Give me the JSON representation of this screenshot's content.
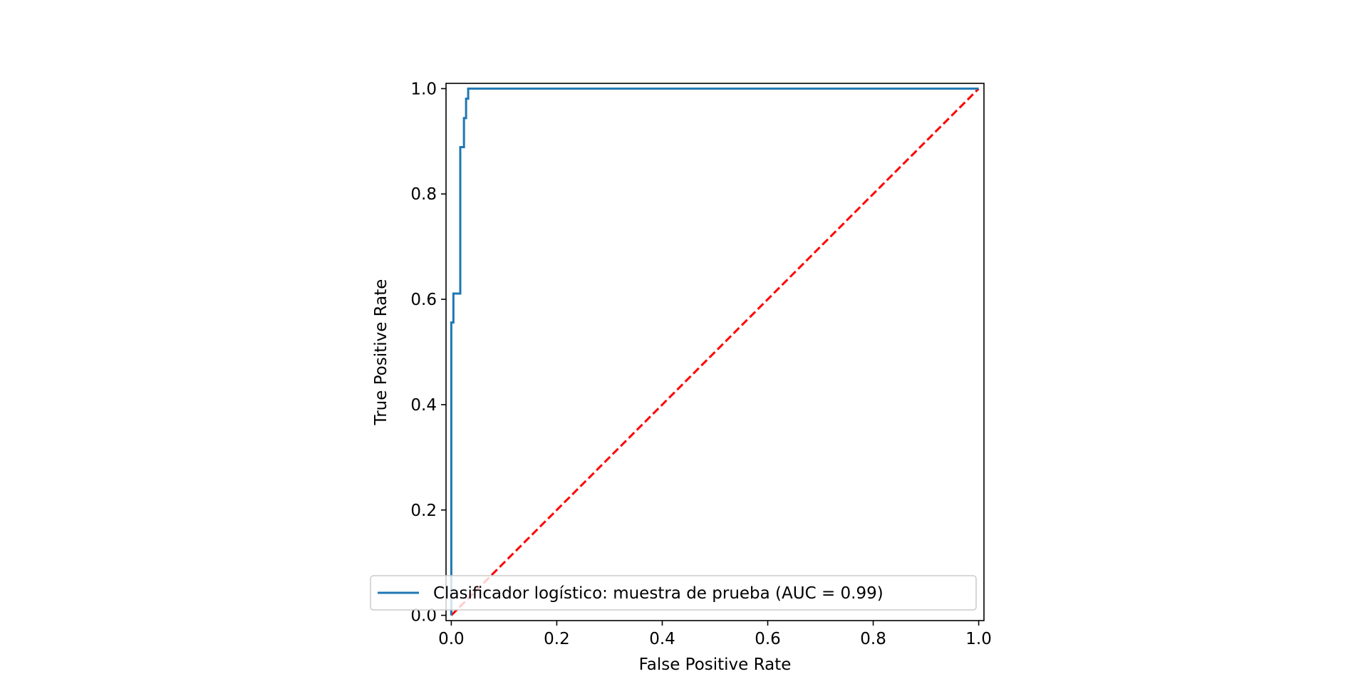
{
  "chart_data": {
    "type": "line",
    "title": "",
    "xlabel": "False Positive Rate",
    "ylabel": "True Positive Rate",
    "xlim": [
      -0.01,
      1.01
    ],
    "ylim": [
      -0.01,
      1.01
    ],
    "xticks": [
      0.0,
      0.2,
      0.4,
      0.6,
      0.8,
      1.0
    ],
    "yticks": [
      0.0,
      0.2,
      0.4,
      0.6,
      0.8,
      1.0
    ],
    "xtick_labels": [
      "0.0",
      "0.2",
      "0.4",
      "0.6",
      "0.8",
      "1.0"
    ],
    "ytick_labels": [
      "0.0",
      "0.2",
      "0.4",
      "0.6",
      "0.8",
      "1.0"
    ],
    "grid": false,
    "legend_position": "lower-right",
    "series": [
      {
        "name": "Clasificador logístico: muestra de prueba (AUC = 0.99)",
        "color": "#1f77b4",
        "style": "solid",
        "x": [
          0.0,
          0.0,
          0.0,
          0.004,
          0.004,
          0.017,
          0.017,
          0.024,
          0.024,
          0.028,
          0.028,
          0.032,
          0.032,
          1.0
        ],
        "y": [
          0.0,
          0.556,
          0.556,
          0.556,
          0.611,
          0.611,
          0.889,
          0.889,
          0.944,
          0.944,
          0.981,
          0.981,
          1.0,
          1.0
        ]
      },
      {
        "name": "",
        "color": "#ff0000",
        "style": "dashed",
        "x": [
          0.0,
          1.0
        ],
        "y": [
          0.0,
          1.0
        ]
      }
    ]
  }
}
